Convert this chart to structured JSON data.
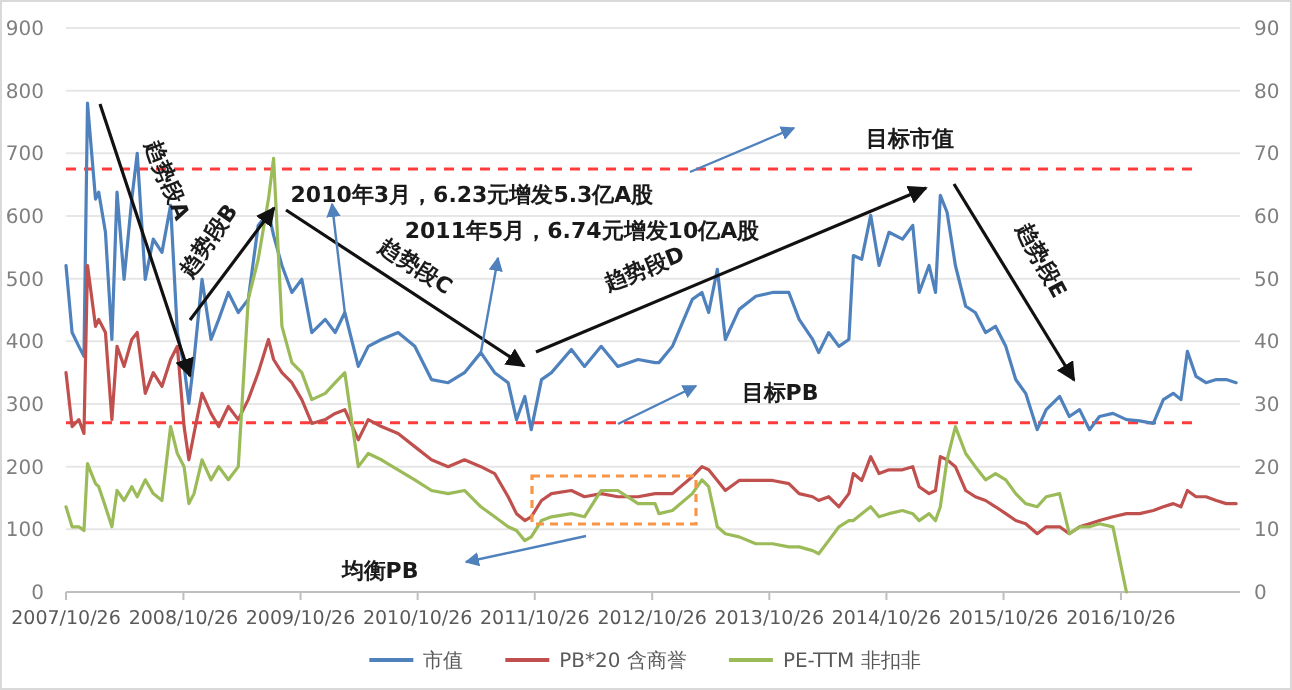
{
  "chart_data": {
    "type": "line",
    "x": [
      "2007-10-26",
      "2007-11-14",
      "2007-12-05",
      "2007-12-21",
      "2008-01-01",
      "2008-01-26",
      "2008-02-05",
      "2008-02-26",
      "2008-03-17",
      "2008-04-02",
      "2008-04-24",
      "2008-05-18",
      "2008-06-04",
      "2008-06-29",
      "2008-07-24",
      "2008-08-20",
      "2008-09-16",
      "2008-10-07",
      "2008-10-28",
      "2008-11-12",
      "2008-11-28",
      "2008-12-23",
      "2009-01-20",
      "2009-02-13",
      "2009-03-15",
      "2009-04-15",
      "2009-05-16",
      "2009-06-16",
      "2009-07-18",
      "2009-08-03",
      "2009-08-29",
      "2009-09-29",
      "2009-10-30",
      "2009-11-30",
      "2010-01-11",
      "2010-02-11",
      "2010-03-13",
      "2010-04-24",
      "2010-05-25",
      "2010-07-05",
      "2010-08-26",
      "2010-10-17",
      "2010-12-08",
      "2011-01-29",
      "2011-03-21",
      "2011-05-11",
      "2011-06-23",
      "2011-08-04",
      "2011-08-30",
      "2011-09-25",
      "2011-10-15",
      "2011-11-16",
      "2011-12-17",
      "2012-02-17",
      "2012-03-29",
      "2012-05-20",
      "2012-07-11",
      "2012-09-12",
      "2012-11-04",
      "2012-11-16",
      "2012-12-28",
      "2013-02-28",
      "2013-03-30",
      "2013-04-20",
      "2013-05-17",
      "2013-06-11",
      "2013-07-24",
      "2013-09-14",
      "2013-11-05",
      "2013-12-26",
      "2014-01-27",
      "2014-03-10",
      "2014-03-29",
      "2014-04-29",
      "2014-05-31",
      "2014-07-01",
      "2014-07-15",
      "2014-08-10",
      "2014-09-07",
      "2014-10-03",
      "2014-11-03",
      "2014-12-15",
      "2015-01-16",
      "2015-02-05",
      "2015-03-08",
      "2015-03-28",
      "2015-04-12",
      "2015-05-03",
      "2015-05-29",
      "2015-06-30",
      "2015-07-30",
      "2015-08-31",
      "2015-10-01",
      "2015-11-02",
      "2015-12-03",
      "2016-01-03",
      "2016-02-08",
      "2016-03-07",
      "2016-04-18",
      "2016-05-18",
      "2016-06-19",
      "2016-07-20",
      "2016-08-20",
      "2016-10-01",
      "2016-11-12",
      "2016-12-23",
      "2017-02-04",
      "2017-03-07",
      "2017-04-07",
      "2017-05-01",
      "2017-05-21",
      "2017-06-17",
      "2017-07-18",
      "2017-08-19",
      "2017-09-19",
      "2017-10-20"
    ],
    "series": [
      {
        "name": "市值",
        "color": "#4f81bd",
        "values": [
          521,
          414,
          392,
          376,
          780,
          627,
          638,
          574,
          403,
          638,
          499,
          627,
          700,
          499,
          563,
          542,
          617,
          414,
          360,
          301,
          371,
          499,
          403,
          435,
          478,
          446,
          467,
          585,
          606,
          569,
          521,
          478,
          499,
          414,
          435,
          414,
          446,
          360,
          392,
          403,
          414,
          392,
          339,
          334,
          350,
          382,
          350,
          334,
          275,
          312,
          259,
          339,
          350,
          387,
          360,
          392,
          360,
          371,
          366,
          366,
          392,
          467,
          478,
          446,
          515,
          403,
          451,
          472,
          478,
          478,
          435,
          403,
          382,
          414,
          392,
          403,
          537,
          531,
          601,
          521,
          574,
          563,
          585,
          478,
          521,
          478,
          633,
          606,
          521,
          456,
          446,
          414,
          424,
          392,
          339,
          317,
          259,
          291,
          312,
          280,
          291,
          259,
          280,
          285,
          275,
          273,
          269,
          307,
          317,
          307,
          384,
          344,
          334,
          339,
          339,
          334
        ]
      },
      {
        "name": "PB*20 含商誉",
        "color": "#c0504d",
        "values": [
          350,
          264,
          275,
          253,
          521,
          424,
          435,
          414,
          275,
          392,
          360,
          403,
          414,
          317,
          350,
          328,
          371,
          392,
          264,
          211,
          253,
          317,
          285,
          264,
          296,
          275,
          307,
          350,
          403,
          371,
          350,
          334,
          307,
          269,
          275,
          285,
          291,
          243,
          275,
          264,
          253,
          232,
          211,
          200,
          211,
          200,
          189,
          152,
          125,
          114,
          120,
          146,
          157,
          162,
          152,
          157,
          152,
          152,
          157,
          157,
          157,
          184,
          200,
          195,
          178,
          162,
          178,
          178,
          178,
          173,
          157,
          152,
          146,
          152,
          136,
          157,
          189,
          178,
          216,
          189,
          195,
          195,
          200,
          168,
          157,
          162,
          216,
          211,
          200,
          162,
          152,
          146,
          136,
          125,
          114,
          109,
          93,
          104,
          104,
          93,
          104,
          109,
          114,
          120,
          125,
          125,
          130,
          136,
          141,
          136,
          162,
          152,
          152,
          146,
          141,
          141
        ]
      },
      {
        "name": "PE-TTM 非扣非",
        "color": "#9bbb59",
        "axis": "y2",
        "values": [
          13.6,
          10.4,
          10.4,
          9.8,
          20.5,
          17.3,
          16.8,
          13.6,
          10.4,
          16.2,
          14.6,
          16.8,
          15.2,
          17.9,
          15.7,
          14.6,
          26.4,
          22.1,
          20.0,
          14.1,
          15.7,
          21.1,
          17.9,
          20.0,
          17.9,
          20.0,
          46.7,
          53.1,
          62.7,
          69.2,
          42.4,
          36.6,
          35.0,
          30.7,
          31.7,
          33.4,
          35.0,
          20.0,
          22.1,
          21.1,
          19.5,
          17.9,
          16.2,
          15.7,
          16.2,
          13.6,
          12.0,
          10.4,
          9.8,
          8.2,
          8.8,
          11.4,
          12.0,
          12.5,
          12.0,
          16.2,
          16.2,
          14.1,
          14.1,
          12.5,
          13.0,
          15.7,
          17.9,
          16.8,
          10.4,
          9.3,
          8.8,
          7.7,
          7.7,
          7.2,
          7.2,
          6.6,
          6.1,
          8.2,
          10.4,
          11.4,
          11.4,
          12.5,
          13.6,
          12.0,
          12.5,
          13.0,
          12.5,
          11.4,
          12.5,
          11.4,
          13.6,
          21.1,
          26.4,
          22.1,
          20.0,
          17.9,
          18.9,
          17.9,
          15.7,
          14.1,
          13.6,
          15.2,
          15.7,
          9.3,
          10.4,
          10.4,
          10.9,
          10.4,
          0,
          null,
          null,
          null,
          null,
          null,
          null,
          null,
          null,
          null,
          null,
          null
        ]
      }
    ],
    "xlim": [
      "2007-10-26",
      "2017-11-01"
    ],
    "xticks": [
      {
        "value": "2007-10-26",
        "label": "2007/10/26"
      },
      {
        "value": "2008-10-26",
        "label": "2008/10/26"
      },
      {
        "value": "2009-10-26",
        "label": "2009/10/26"
      },
      {
        "value": "2010-10-26",
        "label": "2010/10/26"
      },
      {
        "value": "2011-10-26",
        "label": "2011/10/26"
      },
      {
        "value": "2012-10-26",
        "label": "2012/10/26"
      },
      {
        "value": "2013-10-26",
        "label": "2013/10/26"
      },
      {
        "value": "2014-10-26",
        "label": "2014/10/26"
      },
      {
        "value": "2015-10-26",
        "label": "2015/10/26"
      },
      {
        "value": "2016-10-26",
        "label": "2016/10/26"
      }
    ],
    "ylim": [
      0,
      900
    ],
    "yticks": [
      0,
      100,
      200,
      300,
      400,
      500,
      600,
      700,
      800,
      900
    ],
    "y2lim": [
      0,
      90
    ],
    "y2ticks": [
      0,
      10,
      20,
      30,
      40,
      50,
      60,
      70,
      80,
      90
    ],
    "ref_lines": [
      {
        "axis": "y",
        "value": 675,
        "color": "#ff3b3b",
        "line_style": "dashed"
      },
      {
        "axis": "y",
        "value": 270,
        "color": "#ff3b3b",
        "line_style": "dashed"
      }
    ],
    "annotations": [
      "趋势段A",
      "趋势段B",
      "趋势段C",
      "趋势段D",
      "趋势段E",
      {
        "text": "2010年3月，6.23元增发5.3亿A股",
        "x": "2010-03-13",
        "y": 446
      },
      {
        "text": "2011年5月，6.74元增发10亿A股",
        "x": "2011-05-11",
        "y": 382
      },
      "目标市值",
      "目标PB",
      "均衡PB"
    ],
    "grid": "y",
    "legend": "bottom"
  }
}
